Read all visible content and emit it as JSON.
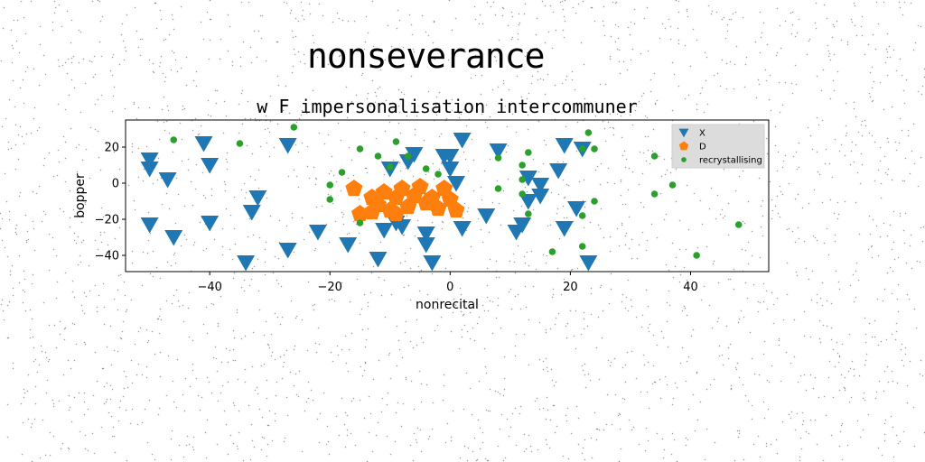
{
  "figure": {
    "suptitle": "nonseverance"
  },
  "chart_data": {
    "type": "scatter",
    "title": "w F impersonalisation intercommuner",
    "xlabel": "nonrecital",
    "ylabel": "bopper",
    "xlim": [
      -54,
      53
    ],
    "ylim": [
      -49,
      35
    ],
    "xticks": [
      -40,
      -20,
      0,
      20,
      40
    ],
    "yticks": [
      20,
      0,
      -20,
      -40
    ],
    "grid": false,
    "legend_position": "top-right",
    "series": [
      {
        "name": "X",
        "marker": "triangle-down",
        "color": "#1f77b4",
        "points": [
          [
            -50,
            13
          ],
          [
            -50,
            8
          ],
          [
            -50,
            -23
          ],
          [
            -47,
            2
          ],
          [
            -46,
            -30
          ],
          [
            -41,
            22
          ],
          [
            -40,
            10
          ],
          [
            -40,
            -22
          ],
          [
            -34,
            -44
          ],
          [
            -33,
            -16
          ],
          [
            -32,
            -8
          ],
          [
            -27,
            21
          ],
          [
            -27,
            -37
          ],
          [
            -22,
            -27
          ],
          [
            -17,
            -34
          ],
          [
            -12,
            -42
          ],
          [
            -11,
            -26
          ],
          [
            -9,
            -22
          ],
          [
            -10,
            8
          ],
          [
            -8,
            -24
          ],
          [
            -7,
            12
          ],
          [
            -6,
            16
          ],
          [
            -4,
            -28
          ],
          [
            -4,
            -34
          ],
          [
            -3,
            -44
          ],
          [
            -1,
            15
          ],
          [
            0,
            8
          ],
          [
            0,
            15
          ],
          [
            1,
            0
          ],
          [
            2,
            24
          ],
          [
            2,
            -25
          ],
          [
            6,
            -18
          ],
          [
            8,
            18
          ],
          [
            11,
            -27
          ],
          [
            12,
            -23
          ],
          [
            13,
            3
          ],
          [
            13,
            -10
          ],
          [
            15,
            -1
          ],
          [
            15,
            -7
          ],
          [
            18,
            7
          ],
          [
            19,
            21
          ],
          [
            19,
            -25
          ],
          [
            21,
            -14
          ],
          [
            22,
            19
          ],
          [
            23,
            -44
          ]
        ]
      },
      {
        "name": "D",
        "marker": "pentagon",
        "color": "#ff7f0e",
        "points": [
          [
            -16,
            -3
          ],
          [
            -15,
            -17
          ],
          [
            -13,
            -8
          ],
          [
            -12,
            -12
          ],
          [
            -11,
            -5
          ],
          [
            -10,
            -15
          ],
          [
            -9,
            -8
          ],
          [
            -8,
            -3
          ],
          [
            -7,
            -13
          ],
          [
            -6,
            -7
          ],
          [
            -5,
            -2
          ],
          [
            -4,
            -11
          ],
          [
            -3,
            -8
          ],
          [
            -2,
            -14
          ],
          [
            -1,
            -3
          ],
          [
            0,
            -9
          ],
          [
            1,
            -15
          ],
          [
            -13,
            -16
          ],
          [
            -9,
            -17
          ]
        ]
      },
      {
        "name": "recrystallising",
        "marker": "circle",
        "color": "#2ca02c",
        "points": [
          [
            -46,
            24
          ],
          [
            -35,
            22
          ],
          [
            -26,
            31
          ],
          [
            -20,
            -1
          ],
          [
            -20,
            -9
          ],
          [
            -18,
            6
          ],
          [
            -15,
            19
          ],
          [
            -15,
            -22
          ],
          [
            -12,
            15
          ],
          [
            -10,
            9
          ],
          [
            -9,
            23
          ],
          [
            -7,
            15
          ],
          [
            -4,
            8
          ],
          [
            -2,
            5
          ],
          [
            8,
            14
          ],
          [
            8,
            -3
          ],
          [
            12,
            10
          ],
          [
            12,
            2
          ],
          [
            12,
            -6
          ],
          [
            13,
            17
          ],
          [
            13,
            -17
          ],
          [
            17,
            -38
          ],
          [
            22,
            -18
          ],
          [
            22,
            -35
          ],
          [
            22,
            19
          ],
          [
            23,
            28
          ],
          [
            24,
            19
          ],
          [
            24,
            -10
          ],
          [
            34,
            15
          ],
          [
            34,
            -6
          ],
          [
            37,
            -1
          ],
          [
            41,
            -40
          ],
          [
            48,
            -23
          ]
        ]
      }
    ]
  }
}
